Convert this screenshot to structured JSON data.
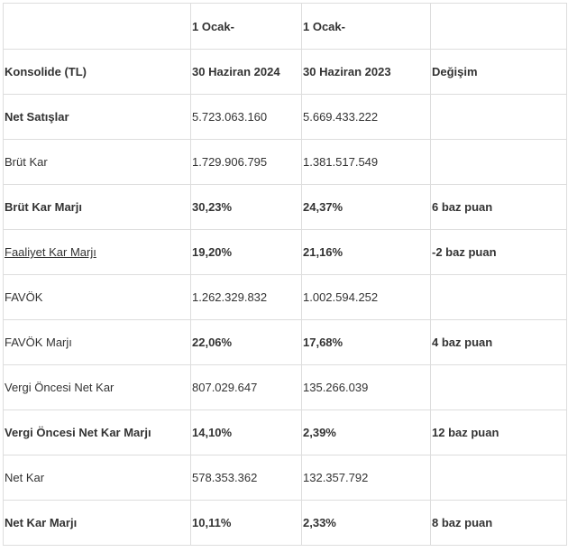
{
  "table": {
    "header": [
      [
        "",
        "1 Ocak-",
        "1 Ocak-",
        ""
      ],
      [
        "Konsolide (TL)",
        "30 Haziran 2024",
        "30 Haziran 2023",
        "Değişim"
      ]
    ],
    "rows": [
      {
        "bold": true,
        "link": false,
        "cells": [
          "Net Satışlar",
          "5.723.063.160",
          "5.669.433.222",
          ""
        ],
        "values_bold": false
      },
      {
        "bold": false,
        "link": false,
        "cells": [
          "Brüt Kar",
          "1.729.906.795",
          "1.381.517.549",
          ""
        ],
        "values_bold": false
      },
      {
        "bold": true,
        "link": false,
        "cells": [
          "Brüt Kar Marjı",
          "30,23%",
          "24,37%",
          "6 baz puan"
        ],
        "values_bold": true
      },
      {
        "bold": false,
        "link": true,
        "cells": [
          "Faaliyet Kar Marjı",
          "19,20%",
          "21,16%",
          "-2 baz puan"
        ],
        "values_bold": true
      },
      {
        "bold": false,
        "link": false,
        "cells": [
          "FAVÖK",
          "1.262.329.832",
          "1.002.594.252",
          ""
        ],
        "values_bold": false
      },
      {
        "bold": false,
        "link": false,
        "cells": [
          "FAVÖK Marjı",
          "22,06%",
          "17,68%",
          "4 baz puan"
        ],
        "values_bold": true
      },
      {
        "bold": false,
        "link": false,
        "cells": [
          "Vergi Öncesi Net Kar",
          "807.029.647",
          "135.266.039",
          ""
        ],
        "values_bold": false
      },
      {
        "bold": true,
        "link": false,
        "cells": [
          "Vergi Öncesi Net Kar Marjı",
          "14,10%",
          "2,39%",
          "12 baz puan"
        ],
        "values_bold": true
      },
      {
        "bold": false,
        "link": false,
        "cells": [
          "Net Kar",
          "578.353.362",
          "132.357.792",
          ""
        ],
        "values_bold": false
      },
      {
        "bold": true,
        "link": false,
        "cells": [
          "Net Kar Marjı",
          "10,11%",
          "2,33%",
          "8 baz puan"
        ],
        "values_bold": true
      }
    ]
  }
}
